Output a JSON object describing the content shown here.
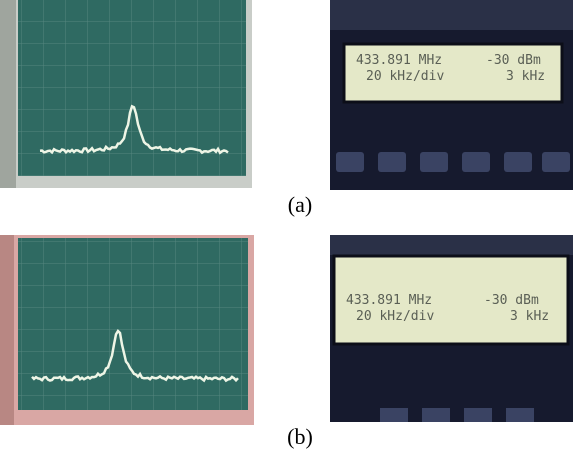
{
  "panels": [
    {
      "caption": "(a)",
      "display": {
        "frequency": "433.891 MHz",
        "level": "-30 dBm",
        "span": "20 kHz/div",
        "resolution": "3 kHz"
      }
    },
    {
      "caption": "(b)",
      "display": {
        "frequency": "433.891 MHz",
        "level": "-30 dBm",
        "span": "20 kHz/div",
        "resolution": "3 kHz"
      }
    }
  ]
}
